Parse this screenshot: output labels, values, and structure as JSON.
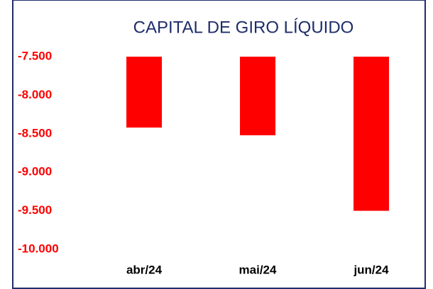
{
  "chart_data": {
    "type": "bar",
    "title": "CAPITAL DE GIRO LÍQUIDO",
    "categories": [
      "abr/24",
      "mai/24",
      "jun/24"
    ],
    "values": [
      -8420,
      -8520,
      -9500
    ],
    "color": "#ff0000",
    "ylim": [
      -10000,
      -7500
    ],
    "yticks": [
      {
        "value": -10000,
        "label": "-10.000"
      },
      {
        "value": -9500,
        "label": "-9.500"
      },
      {
        "value": -9000,
        "label": "-9.000"
      },
      {
        "value": -8500,
        "label": "-8.500"
      },
      {
        "value": -8000,
        "label": "-8.000"
      },
      {
        "value": -7500,
        "label": "-7.500"
      }
    ],
    "grid": false
  }
}
